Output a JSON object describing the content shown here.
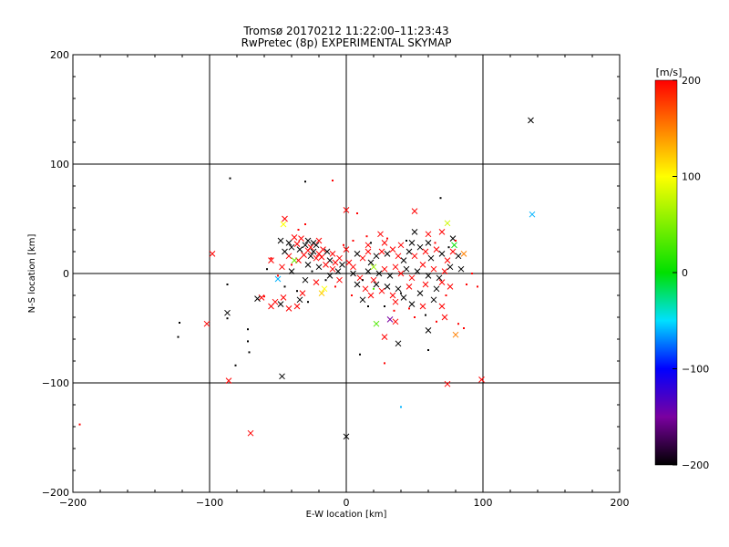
{
  "chart_data": {
    "type": "scatter",
    "title_line1": "Tromsø 20170212 11:22:00–11:23:43",
    "title_line2": "RwPretec (8p) EXPERIMENTAL SKYMAP",
    "xlabel": "E-W location [km]",
    "ylabel": "N-S location [km]",
    "xlim": [
      -200,
      200
    ],
    "ylim": [
      -200,
      200
    ],
    "xticks": [
      -200,
      -100,
      0,
      100,
      200
    ],
    "yticks": [
      -200,
      -100,
      0,
      100,
      200
    ],
    "grid_lines_x": [
      -100,
      0,
      100
    ],
    "grid_lines_y": [
      -100,
      0,
      100
    ],
    "grid": true,
    "marker_note": "x markers = large echoes, dots = small echoes",
    "colorbar": {
      "label": "[m/s]",
      "range": [
        -200,
        200
      ],
      "ticks": [
        -200,
        -100,
        0,
        100,
        200
      ],
      "stops": [
        {
          "v": -200,
          "c": "#000000"
        },
        {
          "v": -150,
          "c": "#7a00a0"
        },
        {
          "v": -100,
          "c": "#0000ff"
        },
        {
          "v": -50,
          "c": "#00e0ff"
        },
        {
          "v": 0,
          "c": "#00e000"
        },
        {
          "v": 100,
          "c": "#ffff00"
        },
        {
          "v": 150,
          "c": "#ff8000"
        },
        {
          "v": 200,
          "c": "#ff0000"
        }
      ]
    },
    "points": [
      {
        "x": 135,
        "y": 140,
        "v": -200,
        "m": "x"
      },
      {
        "x": 136,
        "y": 54,
        "v": -60,
        "m": "x"
      },
      {
        "x": -85,
        "y": 87,
        "v": -200,
        "m": "d"
      },
      {
        "x": -30,
        "y": 84,
        "v": -200,
        "m": "d"
      },
      {
        "x": -10,
        "y": 85,
        "v": 200,
        "m": "d"
      },
      {
        "x": 69,
        "y": 69,
        "v": -200,
        "m": "d"
      },
      {
        "x": 0,
        "y": 58,
        "v": 200,
        "m": "x"
      },
      {
        "x": 50,
        "y": 57,
        "v": 200,
        "m": "x"
      },
      {
        "x": 8,
        "y": 55,
        "v": 200,
        "m": "d"
      },
      {
        "x": -45,
        "y": 50,
        "v": 200,
        "m": "x"
      },
      {
        "x": -46,
        "y": 45,
        "v": 100,
        "m": "x"
      },
      {
        "x": 74,
        "y": 46,
        "v": 80,
        "m": "x"
      },
      {
        "x": -30,
        "y": 45,
        "v": 200,
        "m": "d"
      },
      {
        "x": -35,
        "y": 40,
        "v": 200,
        "m": "d"
      },
      {
        "x": 50,
        "y": 38,
        "v": -200,
        "m": "x"
      },
      {
        "x": 25,
        "y": 36,
        "v": 200,
        "m": "x"
      },
      {
        "x": 60,
        "y": 36,
        "v": 200,
        "m": "x"
      },
      {
        "x": 70,
        "y": 38,
        "v": 200,
        "m": "x"
      },
      {
        "x": 15,
        "y": 34,
        "v": 200,
        "m": "d"
      },
      {
        "x": -38,
        "y": 33,
        "v": 200,
        "m": "x"
      },
      {
        "x": -33,
        "y": 32,
        "v": 200,
        "m": "x"
      },
      {
        "x": -28,
        "y": 30,
        "v": -200,
        "m": "x"
      },
      {
        "x": -24,
        "y": 28,
        "v": -200,
        "m": "x"
      },
      {
        "x": -20,
        "y": 30,
        "v": 200,
        "m": "x"
      },
      {
        "x": -48,
        "y": 30,
        "v": -200,
        "m": "x"
      },
      {
        "x": -42,
        "y": 28,
        "v": -200,
        "m": "x"
      },
      {
        "x": -36,
        "y": 27,
        "v": 200,
        "m": "x"
      },
      {
        "x": -30,
        "y": 26,
        "v": -200,
        "m": "x"
      },
      {
        "x": -26,
        "y": 24,
        "v": 200,
        "m": "x"
      },
      {
        "x": -22,
        "y": 26,
        "v": -200,
        "m": "x"
      },
      {
        "x": -40,
        "y": 24,
        "v": -200,
        "m": "x"
      },
      {
        "x": -34,
        "y": 22,
        "v": -200,
        "m": "x"
      },
      {
        "x": -28,
        "y": 21,
        "v": 200,
        "m": "x"
      },
      {
        "x": -24,
        "y": 20,
        "v": -200,
        "m": "x"
      },
      {
        "x": -20,
        "y": 18,
        "v": 200,
        "m": "x"
      },
      {
        "x": -17,
        "y": 22,
        "v": 200,
        "m": "x"
      },
      {
        "x": -14,
        "y": 20,
        "v": -200,
        "m": "x"
      },
      {
        "x": -10,
        "y": 18,
        "v": 200,
        "m": "x"
      },
      {
        "x": -18,
        "y": 15,
        "v": 200,
        "m": "x"
      },
      {
        "x": -22,
        "y": 14,
        "v": 200,
        "m": "x"
      },
      {
        "x": -26,
        "y": 16,
        "v": -200,
        "m": "x"
      },
      {
        "x": -31,
        "y": 17,
        "v": 200,
        "m": "x"
      },
      {
        "x": -12,
        "y": 12,
        "v": -200,
        "m": "x"
      },
      {
        "x": -8,
        "y": 10,
        "v": 200,
        "m": "x"
      },
      {
        "x": -5,
        "y": 14,
        "v": 200,
        "m": "x"
      },
      {
        "x": -3,
        "y": 8,
        "v": -200,
        "m": "x"
      },
      {
        "x": -15,
        "y": 8,
        "v": 200,
        "m": "x"
      },
      {
        "x": -20,
        "y": 6,
        "v": -200,
        "m": "x"
      },
      {
        "x": -28,
        "y": 8,
        "v": -200,
        "m": "x"
      },
      {
        "x": -35,
        "y": 12,
        "v": 200,
        "m": "x"
      },
      {
        "x": -42,
        "y": 16,
        "v": 200,
        "m": "x"
      },
      {
        "x": -45,
        "y": 20,
        "v": -200,
        "m": "x"
      },
      {
        "x": -47,
        "y": 6,
        "v": 200,
        "m": "x"
      },
      {
        "x": -40,
        "y": 2,
        "v": -200,
        "m": "x"
      },
      {
        "x": -55,
        "y": 12,
        "v": 200,
        "m": "x"
      },
      {
        "x": -10,
        "y": 4,
        "v": 200,
        "m": "x"
      },
      {
        "x": -6,
        "y": 2,
        "v": -200,
        "m": "x"
      },
      {
        "x": 2,
        "y": 10,
        "v": 200,
        "m": "x"
      },
      {
        "x": 5,
        "y": 6,
        "v": 200,
        "m": "x"
      },
      {
        "x": 8,
        "y": 18,
        "v": -200,
        "m": "x"
      },
      {
        "x": 12,
        "y": 14,
        "v": 200,
        "m": "x"
      },
      {
        "x": 16,
        "y": 20,
        "v": 200,
        "m": "x"
      },
      {
        "x": 18,
        "y": 10,
        "v": -200,
        "m": "x"
      },
      {
        "x": 22,
        "y": 16,
        "v": -200,
        "m": "x"
      },
      {
        "x": 26,
        "y": 20,
        "v": 200,
        "m": "x"
      },
      {
        "x": 30,
        "y": 18,
        "v": -200,
        "m": "x"
      },
      {
        "x": 34,
        "y": 22,
        "v": 200,
        "m": "x"
      },
      {
        "x": 38,
        "y": 16,
        "v": 200,
        "m": "x"
      },
      {
        "x": 42,
        "y": 12,
        "v": -200,
        "m": "x"
      },
      {
        "x": 46,
        "y": 20,
        "v": -200,
        "m": "x"
      },
      {
        "x": 50,
        "y": 16,
        "v": 200,
        "m": "x"
      },
      {
        "x": 54,
        "y": 24,
        "v": -200,
        "m": "x"
      },
      {
        "x": 58,
        "y": 20,
        "v": 200,
        "m": "x"
      },
      {
        "x": 62,
        "y": 14,
        "v": -200,
        "m": "x"
      },
      {
        "x": 66,
        "y": 22,
        "v": 200,
        "m": "x"
      },
      {
        "x": 70,
        "y": 18,
        "v": -200,
        "m": "x"
      },
      {
        "x": 74,
        "y": 12,
        "v": 200,
        "m": "x"
      },
      {
        "x": 78,
        "y": 20,
        "v": 200,
        "m": "x"
      },
      {
        "x": 82,
        "y": 16,
        "v": -200,
        "m": "x"
      },
      {
        "x": 86,
        "y": 18,
        "v": 150,
        "m": "x"
      },
      {
        "x": 79,
        "y": 26,
        "v": 0,
        "m": "x"
      },
      {
        "x": 78,
        "y": 32,
        "v": -200,
        "m": "x"
      },
      {
        "x": 60,
        "y": 28,
        "v": -200,
        "m": "x"
      },
      {
        "x": 48,
        "y": 28,
        "v": -200,
        "m": "x"
      },
      {
        "x": 40,
        "y": 26,
        "v": 200,
        "m": "x"
      },
      {
        "x": 28,
        "y": 28,
        "v": 200,
        "m": "x"
      },
      {
        "x": 16,
        "y": 26,
        "v": 200,
        "m": "x"
      },
      {
        "x": 0,
        "y": 22,
        "v": 200,
        "m": "x"
      },
      {
        "x": 5,
        "y": 0,
        "v": -200,
        "m": "x"
      },
      {
        "x": 10,
        "y": -4,
        "v": 200,
        "m": "x"
      },
      {
        "x": 16,
        "y": 2,
        "v": -200,
        "m": "x"
      },
      {
        "x": 20,
        "y": -6,
        "v": 200,
        "m": "x"
      },
      {
        "x": 24,
        "y": 0,
        "v": -200,
        "m": "x"
      },
      {
        "x": 28,
        "y": 4,
        "v": 200,
        "m": "x"
      },
      {
        "x": 32,
        "y": -2,
        "v": -200,
        "m": "x"
      },
      {
        "x": 36,
        "y": 6,
        "v": 200,
        "m": "x"
      },
      {
        "x": 40,
        "y": 0,
        "v": 200,
        "m": "x"
      },
      {
        "x": 44,
        "y": 4,
        "v": -200,
        "m": "x"
      },
      {
        "x": 48,
        "y": -4,
        "v": 200,
        "m": "x"
      },
      {
        "x": 52,
        "y": 2,
        "v": -200,
        "m": "x"
      },
      {
        "x": 56,
        "y": 8,
        "v": 200,
        "m": "x"
      },
      {
        "x": 60,
        "y": -2,
        "v": -200,
        "m": "x"
      },
      {
        "x": 64,
        "y": 4,
        "v": 200,
        "m": "x"
      },
      {
        "x": 68,
        "y": -4,
        "v": -200,
        "m": "x"
      },
      {
        "x": 72,
        "y": 2,
        "v": 200,
        "m": "x"
      },
      {
        "x": 76,
        "y": 6,
        "v": -200,
        "m": "x"
      },
      {
        "x": 84,
        "y": 4,
        "v": -200,
        "m": "x"
      },
      {
        "x": 8,
        "y": -10,
        "v": -200,
        "m": "x"
      },
      {
        "x": 14,
        "y": -14,
        "v": 200,
        "m": "x"
      },
      {
        "x": 22,
        "y": -10,
        "v": -200,
        "m": "x"
      },
      {
        "x": 26,
        "y": -16,
        "v": 200,
        "m": "x"
      },
      {
        "x": 30,
        "y": -12,
        "v": -200,
        "m": "x"
      },
      {
        "x": 34,
        "y": -20,
        "v": 200,
        "m": "x"
      },
      {
        "x": 38,
        "y": -14,
        "v": -200,
        "m": "x"
      },
      {
        "x": 42,
        "y": -22,
        "v": -200,
        "m": "x"
      },
      {
        "x": 46,
        "y": -12,
        "v": 200,
        "m": "x"
      },
      {
        "x": 54,
        "y": -18,
        "v": -200,
        "m": "x"
      },
      {
        "x": 58,
        "y": -10,
        "v": 200,
        "m": "x"
      },
      {
        "x": 66,
        "y": -14,
        "v": -200,
        "m": "x"
      },
      {
        "x": 70,
        "y": -8,
        "v": 200,
        "m": "x"
      },
      {
        "x": 76,
        "y": -12,
        "v": 200,
        "m": "x"
      },
      {
        "x": 12,
        "y": -24,
        "v": -200,
        "m": "x"
      },
      {
        "x": 18,
        "y": -20,
        "v": 200,
        "m": "x"
      },
      {
        "x": 36,
        "y": -26,
        "v": 200,
        "m": "x"
      },
      {
        "x": 48,
        "y": -28,
        "v": -200,
        "m": "x"
      },
      {
        "x": 56,
        "y": -30,
        "v": 200,
        "m": "x"
      },
      {
        "x": 64,
        "y": -24,
        "v": -200,
        "m": "x"
      },
      {
        "x": 70,
        "y": -30,
        "v": 200,
        "m": "x"
      },
      {
        "x": -5,
        "y": -6,
        "v": 200,
        "m": "x"
      },
      {
        "x": -12,
        "y": -2,
        "v": -200,
        "m": "x"
      },
      {
        "x": -16,
        "y": -14,
        "v": 100,
        "m": "x"
      },
      {
        "x": -22,
        "y": -8,
        "v": 200,
        "m": "x"
      },
      {
        "x": -30,
        "y": -6,
        "v": -200,
        "m": "x"
      },
      {
        "x": -32,
        "y": -18,
        "v": 200,
        "m": "x"
      },
      {
        "x": -34,
        "y": -24,
        "v": -200,
        "m": "x"
      },
      {
        "x": -46,
        "y": -22,
        "v": 200,
        "m": "x"
      },
      {
        "x": -48,
        "y": -28,
        "v": -200,
        "m": "x"
      },
      {
        "x": -52,
        "y": -26,
        "v": 200,
        "m": "x"
      },
      {
        "x": -62,
        "y": -22,
        "v": 200,
        "m": "x"
      },
      {
        "x": -65,
        "y": -23,
        "v": -200,
        "m": "x"
      },
      {
        "x": -36,
        "y": -30,
        "v": 200,
        "m": "x"
      },
      {
        "x": -42,
        "y": -32,
        "v": 200,
        "m": "x"
      },
      {
        "x": -55,
        "y": -30,
        "v": 200,
        "m": "x"
      },
      {
        "x": -50,
        "y": -5,
        "v": -60,
        "m": "x"
      },
      {
        "x": -38,
        "y": 12,
        "v": 40,
        "m": "x"
      },
      {
        "x": -18,
        "y": -18,
        "v": 120,
        "m": "x"
      },
      {
        "x": 20,
        "y": 6,
        "v": 60,
        "m": "x"
      },
      {
        "x": 22,
        "y": -46,
        "v": 30,
        "m": "x"
      },
      {
        "x": 32,
        "y": -42,
        "v": -150,
        "m": "x"
      },
      {
        "x": 36,
        "y": -44,
        "v": 200,
        "m": "x"
      },
      {
        "x": 60,
        "y": -52,
        "v": -200,
        "m": "x"
      },
      {
        "x": 72,
        "y": -40,
        "v": 200,
        "m": "x"
      },
      {
        "x": 80,
        "y": -56,
        "v": 150,
        "m": "x"
      },
      {
        "x": 28,
        "y": -58,
        "v": 200,
        "m": "x"
      },
      {
        "x": 38,
        "y": -64,
        "v": -200,
        "m": "x"
      },
      {
        "x": -98,
        "y": 18,
        "v": 200,
        "m": "x"
      },
      {
        "x": -102,
        "y": -46,
        "v": 200,
        "m": "x"
      },
      {
        "x": -87,
        "y": -36,
        "v": -200,
        "m": "x"
      },
      {
        "x": -86,
        "y": -98,
        "v": 200,
        "m": "x"
      },
      {
        "x": -47,
        "y": -94,
        "v": -200,
        "m": "x"
      },
      {
        "x": -70,
        "y": -146,
        "v": 200,
        "m": "x"
      },
      {
        "x": 0,
        "y": -149,
        "v": -200,
        "m": "x"
      },
      {
        "x": 74,
        "y": -101,
        "v": 200,
        "m": "x"
      },
      {
        "x": 99,
        "y": -97,
        "v": 200,
        "m": "x"
      },
      {
        "x": -122,
        "y": -45,
        "v": -200,
        "m": "d"
      },
      {
        "x": -123,
        "y": -58,
        "v": -200,
        "m": "d"
      },
      {
        "x": -87,
        "y": -10,
        "v": -200,
        "m": "d"
      },
      {
        "x": -87,
        "y": -41,
        "v": -200,
        "m": "d"
      },
      {
        "x": -81,
        "y": -84,
        "v": -200,
        "m": "d"
      },
      {
        "x": -72,
        "y": -51,
        "v": -200,
        "m": "d"
      },
      {
        "x": -72,
        "y": -62,
        "v": -200,
        "m": "d"
      },
      {
        "x": -71,
        "y": -72,
        "v": -200,
        "m": "d"
      },
      {
        "x": -60,
        "y": -21,
        "v": 200,
        "m": "d"
      },
      {
        "x": -55,
        "y": 14,
        "v": 200,
        "m": "d"
      },
      {
        "x": -50,
        "y": -2,
        "v": 200,
        "m": "d"
      },
      {
        "x": -45,
        "y": -12,
        "v": -200,
        "m": "d"
      },
      {
        "x": -40,
        "y": 8,
        "v": 200,
        "m": "d"
      },
      {
        "x": -25,
        "y": 2,
        "v": -200,
        "m": "d"
      },
      {
        "x": -15,
        "y": -6,
        "v": -200,
        "m": "d"
      },
      {
        "x": -8,
        "y": -12,
        "v": 200,
        "m": "d"
      },
      {
        "x": 5,
        "y": 30,
        "v": 200,
        "m": "d"
      },
      {
        "x": 12,
        "y": -6,
        "v": -200,
        "m": "d"
      },
      {
        "x": 20,
        "y": -14,
        "v": 30,
        "m": "d"
      },
      {
        "x": 28,
        "y": -30,
        "v": -200,
        "m": "d"
      },
      {
        "x": 35,
        "y": -34,
        "v": 200,
        "m": "d"
      },
      {
        "x": 40,
        "y": -18,
        "v": -200,
        "m": "d"
      },
      {
        "x": 50,
        "y": -40,
        "v": 200,
        "m": "d"
      },
      {
        "x": 58,
        "y": -38,
        "v": -200,
        "m": "d"
      },
      {
        "x": 66,
        "y": -44,
        "v": 200,
        "m": "d"
      },
      {
        "x": 73,
        "y": -20,
        "v": 200,
        "m": "d"
      },
      {
        "x": 82,
        "y": -46,
        "v": 200,
        "m": "d"
      },
      {
        "x": 86,
        "y": -50,
        "v": 200,
        "m": "d"
      },
      {
        "x": 88,
        "y": -10,
        "v": 200,
        "m": "d"
      },
      {
        "x": 92,
        "y": 0,
        "v": 200,
        "m": "d"
      },
      {
        "x": 96,
        "y": -12,
        "v": 200,
        "m": "d"
      },
      {
        "x": 60,
        "y": -70,
        "v": -200,
        "m": "d"
      },
      {
        "x": 10,
        "y": -74,
        "v": -200,
        "m": "d"
      },
      {
        "x": 28,
        "y": -82,
        "v": 200,
        "m": "d"
      },
      {
        "x": 40,
        "y": -122,
        "v": -60,
        "m": "d"
      },
      {
        "x": -195,
        "y": -138,
        "v": 200,
        "m": "d"
      },
      {
        "x": 80,
        "y": 30,
        "v": 200,
        "m": "d"
      },
      {
        "x": 75,
        "y": 24,
        "v": -200,
        "m": "d"
      },
      {
        "x": 65,
        "y": 28,
        "v": 200,
        "m": "d"
      },
      {
        "x": 44,
        "y": 30,
        "v": -200,
        "m": "d"
      },
      {
        "x": 30,
        "y": 32,
        "v": 200,
        "m": "d"
      },
      {
        "x": 18,
        "y": 28,
        "v": -200,
        "m": "d"
      },
      {
        "x": -2,
        "y": 26,
        "v": 200,
        "m": "d"
      },
      {
        "x": -58,
        "y": 4,
        "v": -200,
        "m": "d"
      },
      {
        "x": -36,
        "y": -16,
        "v": -200,
        "m": "d"
      },
      {
        "x": -28,
        "y": -26,
        "v": -200,
        "m": "d"
      },
      {
        "x": 4,
        "y": -20,
        "v": 200,
        "m": "d"
      },
      {
        "x": 16,
        "y": -30,
        "v": -200,
        "m": "d"
      },
      {
        "x": 46,
        "y": -32,
        "v": 200,
        "m": "d"
      }
    ]
  }
}
